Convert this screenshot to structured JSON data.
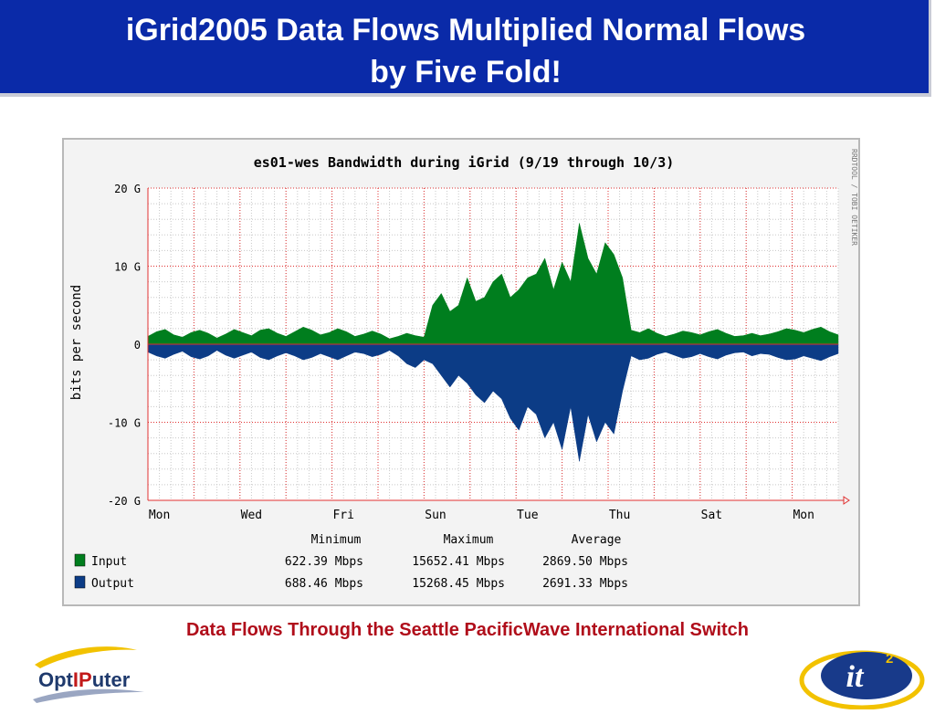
{
  "slide": {
    "title_line1": "iGrid2005 Data Flows Multiplied Normal Flows",
    "title_line2": "by Five Fold!",
    "caption": "Data Flows Through the Seattle PacificWave International Switch",
    "logo_left_text_a": "Opt",
    "logo_left_text_b": "IP",
    "logo_left_text_c": "uter",
    "logo_right_text": "it",
    "logo_right_sup": "2"
  },
  "colors": {
    "title_bg": "#0a2aa8",
    "caption": "#b00d1a",
    "input": "#007e1e",
    "output": "#0c3c86",
    "grid_major": "#e03030",
    "grid_minor": "#c8c8c8",
    "plot_bg": "#ffffff"
  },
  "chart_data": {
    "type": "area",
    "title": "es01-wes Bandwidth during iGrid (9/19 through 10/3)",
    "ylabel": "bits per second",
    "side_label": "RRDTOOL / TOBI OETIKER",
    "ylim": [
      -20,
      20
    ],
    "yunit": "G",
    "yticks": [
      {
        "value": 20,
        "label": "20 G"
      },
      {
        "value": 10,
        "label": "10 G"
      },
      {
        "value": 0,
        "label": "0"
      },
      {
        "value": -10,
        "label": "-10 G"
      },
      {
        "value": -20,
        "label": "-20 G"
      }
    ],
    "xlim": [
      0,
      15
    ],
    "xticks": [
      {
        "value": 0.25,
        "label": "Mon"
      },
      {
        "value": 2.25,
        "label": "Wed"
      },
      {
        "value": 4.25,
        "label": "Fri"
      },
      {
        "value": 6.25,
        "label": "Sun"
      },
      {
        "value": 8.25,
        "label": "Tue"
      },
      {
        "value": 10.25,
        "label": "Thu"
      },
      {
        "value": 12.25,
        "label": "Sat"
      },
      {
        "value": 14.25,
        "label": "Mon"
      }
    ],
    "grid": true,
    "series": [
      {
        "name": "Input",
        "values": [
          1.0,
          1.6,
          1.9,
          1.2,
          0.9,
          1.5,
          1.8,
          1.4,
          0.8,
          1.3,
          1.9,
          1.5,
          1.1,
          1.8,
          2.0,
          1.4,
          1.0,
          1.6,
          2.2,
          1.8,
          1.2,
          1.5,
          2.0,
          1.6,
          1.0,
          1.3,
          1.7,
          1.3,
          0.7,
          1.0,
          1.4,
          1.1,
          0.9,
          5.0,
          6.5,
          4.2,
          5.0,
          8.5,
          5.5,
          6.0,
          8.0,
          9.0,
          6.0,
          7.0,
          8.5,
          9.0,
          11.0,
          7.0,
          10.5,
          8.0,
          15.5,
          11.0,
          9.0,
          13.0,
          11.5,
          8.5,
          1.8,
          1.5,
          2.0,
          1.4,
          1.0,
          1.3,
          1.7,
          1.5,
          1.2,
          1.6,
          1.9,
          1.4,
          1.0,
          1.1,
          1.4,
          1.1,
          1.3,
          1.6,
          2.0,
          1.8,
          1.5,
          1.9,
          2.2,
          1.6,
          1.2
        ]
      },
      {
        "name": "Output",
        "values": [
          -1.0,
          -1.5,
          -1.8,
          -1.3,
          -0.9,
          -1.6,
          -1.9,
          -1.5,
          -0.8,
          -1.4,
          -1.8,
          -1.4,
          -1.0,
          -1.7,
          -2.0,
          -1.5,
          -1.1,
          -1.5,
          -2.0,
          -1.7,
          -1.2,
          -1.6,
          -2.0,
          -1.5,
          -1.0,
          -1.2,
          -1.6,
          -1.3,
          -0.8,
          -1.5,
          -2.5,
          -3.0,
          -2.0,
          -2.5,
          -4.0,
          -5.5,
          -4.0,
          -5.0,
          -6.5,
          -7.5,
          -6.0,
          -7.0,
          -9.5,
          -11.0,
          -8.0,
          -9.0,
          -12.0,
          -10.0,
          -13.5,
          -8.0,
          -15.0,
          -9.0,
          -12.5,
          -10.0,
          -11.5,
          -6.0,
          -1.5,
          -2.0,
          -1.8,
          -1.3,
          -1.0,
          -1.4,
          -1.8,
          -1.6,
          -1.2,
          -1.6,
          -1.9,
          -1.4,
          -1.1,
          -1.0,
          -1.5,
          -1.2,
          -1.3,
          -1.7,
          -2.0,
          -1.9,
          -1.5,
          -1.8,
          -2.1,
          -1.6,
          -1.2
        ]
      }
    ],
    "legend": {
      "placement": "bottom-left",
      "headers": [
        "Minimum",
        "Maximum",
        "Average"
      ],
      "rows": [
        {
          "name": "Input",
          "min": "622.39 Mbps",
          "max": "15652.41 Mbps",
          "avg": "2869.50 Mbps"
        },
        {
          "name": "Output",
          "min": "688.46 Mbps",
          "max": "15268.45 Mbps",
          "avg": "2691.33 Mbps"
        }
      ]
    }
  }
}
